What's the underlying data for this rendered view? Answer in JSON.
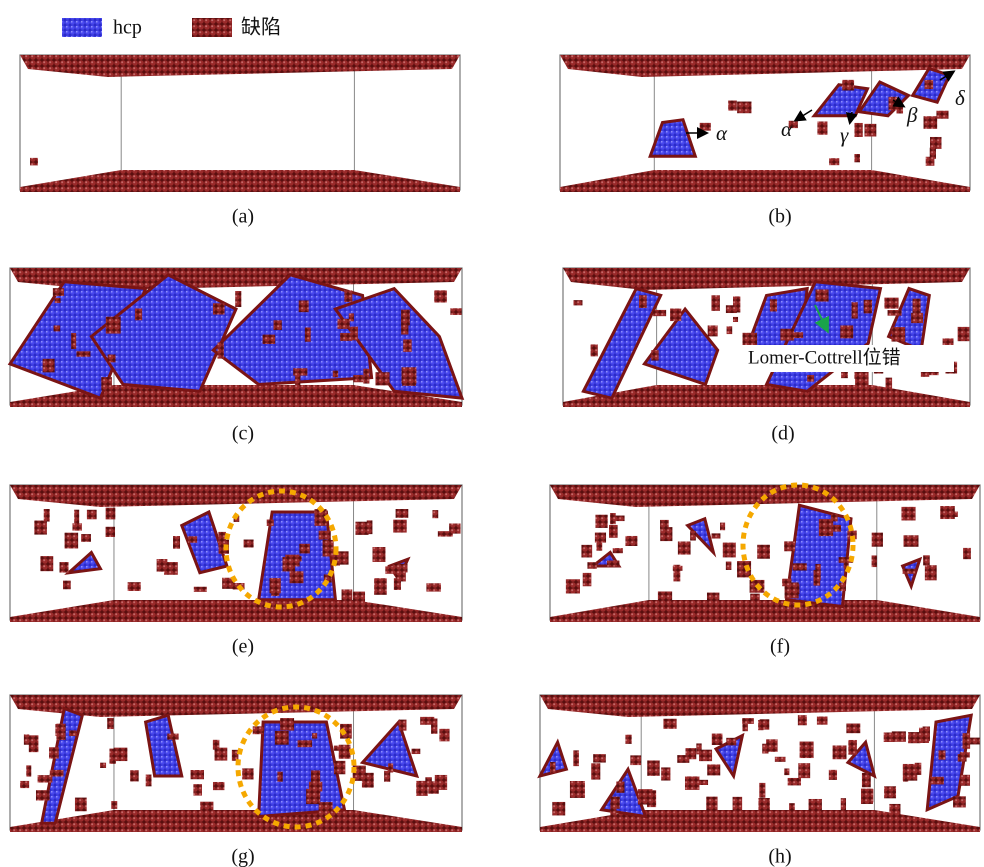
{
  "legend": [
    "hcp",
    "缺陷"
  ],
  "panels": [
    "(a)",
    "(b)",
    "(c)",
    "(d)",
    "(e)",
    "(f)",
    "(g)",
    "(h)"
  ],
  "panel_b_labels": [
    "α",
    "α",
    "γ",
    "β",
    "δ"
  ],
  "panel_d_label": "Lomer-Cottrell位错"
}
